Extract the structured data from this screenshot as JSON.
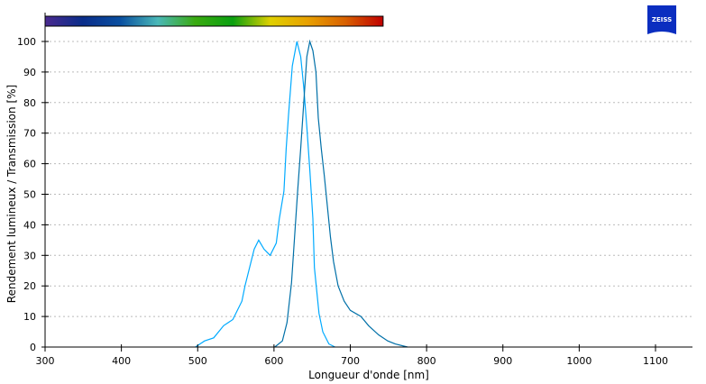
{
  "brand": {
    "logo_text": "ZEISS",
    "color": "#0b2ec0"
  },
  "chart_data": {
    "type": "line",
    "title": "",
    "xlabel": "Longueur d'onde [nm]",
    "ylabel": "Rendement lumineux / Transmission [%]",
    "xlim": [
      300,
      1150
    ],
    "ylim": [
      0,
      100
    ],
    "x_ticks": [
      300,
      400,
      500,
      600,
      700,
      800,
      900,
      1000,
      1100
    ],
    "y_ticks": [
      0,
      10,
      20,
      30,
      40,
      50,
      60,
      70,
      80,
      90,
      100
    ],
    "grid": "horizontal dotted",
    "spectrum_bar": {
      "range_nm": [
        300,
        743
      ],
      "colors": [
        "#4a2a8f",
        "#0a2d8a",
        "#0a4fa0",
        "#4ab8b8",
        "#3aaa10",
        "#0aa010",
        "#e0d000",
        "#e8a000",
        "#d86000",
        "#c00000"
      ]
    },
    "series": [
      {
        "color": "#00aaff",
        "x": [
          497,
          509,
          521,
          534,
          546,
          558,
          562,
          568,
          574,
          580,
          587,
          595,
          603,
          607,
          613,
          616,
          619,
          624,
          630,
          635,
          639,
          643,
          647,
          651,
          653,
          659,
          664,
          672,
          680
        ],
        "y": [
          0,
          2,
          3,
          7,
          9,
          15,
          20,
          26,
          32,
          35,
          32,
          30,
          34,
          42,
          51,
          65,
          76,
          92,
          100,
          95,
          85,
          72,
          58,
          42,
          26,
          11,
          5,
          1,
          0
        ]
      },
      {
        "color": "#0070a8",
        "x": [
          601,
          611,
          617,
          623,
          627,
          631,
          635,
          639,
          643,
          647,
          651,
          655,
          658,
          662,
          666,
          670,
          674,
          678,
          684,
          692,
          700,
          714,
          724,
          737,
          749,
          759,
          775
        ],
        "y": [
          0,
          2,
          8,
          21,
          36,
          51,
          65,
          80,
          95,
          100,
          97,
          90,
          75,
          65,
          56,
          46,
          36,
          28,
          20,
          15,
          12,
          10,
          7,
          4,
          2,
          1,
          0
        ]
      }
    ]
  }
}
